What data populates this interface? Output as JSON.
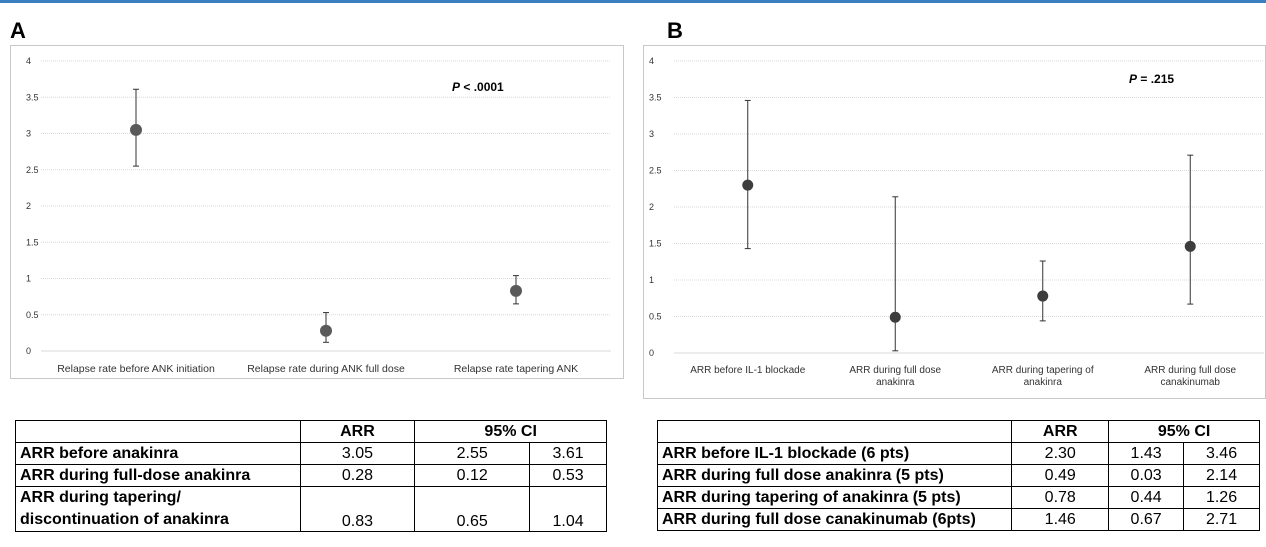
{
  "panels": [
    {
      "letter": "A",
      "annotation_p": "P",
      "annotation_rest": " < .0001",
      "yticks": [
        "4",
        "3.5",
        "3",
        "2.5",
        "2",
        "1.5",
        "1",
        "0.5",
        "0"
      ],
      "table": {
        "header": [
          "",
          "ARR",
          "95% CI"
        ],
        "rows": [
          {
            "label": "ARR before anakinra",
            "arr": "3.05",
            "lo": "2.55",
            "hi": "3.61"
          },
          {
            "label": "ARR during full-dose anakinra",
            "arr": "0.28",
            "lo": "0.12",
            "hi": "0.53"
          },
          {
            "label_line1": "ARR during tapering/",
            "label_line2": "discontinuation of anakinra",
            "arr": "0.83",
            "lo": "0.65",
            "hi": "1.04"
          }
        ]
      }
    },
    {
      "letter": "B",
      "annotation_p": "P",
      "annotation_rest": " = .215",
      "yticks": [
        "4",
        "3.5",
        "3",
        "2.5",
        "2",
        "1.5",
        "1",
        "0.5",
        "0"
      ],
      "table": {
        "header": [
          "",
          "ARR",
          "95% CI"
        ],
        "rows": [
          {
            "label": "ARR before IL-1 blockade (6 pts)",
            "arr": "2.30",
            "lo": "1.43",
            "hi": "3.46"
          },
          {
            "label": "ARR during full dose anakinra (5 pts)",
            "arr": "0.49",
            "lo": "0.03",
            "hi": "2.14"
          },
          {
            "label": "ARR during tapering of anakinra (5 pts)",
            "arr": "0.78",
            "lo": "0.44",
            "hi": "1.26"
          },
          {
            "label": "ARR during full dose canakinumab (6pts)",
            "arr": "1.46",
            "lo": "0.67",
            "hi": "2.71"
          }
        ]
      }
    }
  ],
  "chart_data": [
    {
      "type": "scatter",
      "title": "",
      "xlabel": "",
      "ylabel": "",
      "ylim": [
        0,
        4
      ],
      "grid": true,
      "categories": [
        "Relapse rate before ANK initiation",
        "Relapse rate during ANK full dose",
        "Relapse rate tapering ANK"
      ],
      "values": [
        3.05,
        0.28,
        0.83
      ],
      "lower": [
        2.55,
        0.12,
        0.65
      ],
      "upper": [
        3.61,
        0.53,
        1.04
      ],
      "marker_color": "#5a5a5a"
    },
    {
      "type": "scatter",
      "title": "",
      "xlabel": "",
      "ylabel": "",
      "ylim": [
        0,
        4
      ],
      "grid": true,
      "categories": [
        [
          "ARR before IL-1 blockade"
        ],
        [
          "ARR during full dose",
          "anakinra"
        ],
        [
          "ARR during tapering of",
          "anakinra"
        ],
        [
          "ARR during full dose",
          "canakinumab"
        ]
      ],
      "values": [
        2.3,
        0.49,
        0.78,
        1.46
      ],
      "lower": [
        1.43,
        0.03,
        0.44,
        0.67
      ],
      "upper": [
        3.46,
        2.14,
        1.26,
        2.71
      ],
      "marker_color": "#3d3d3d"
    }
  ]
}
